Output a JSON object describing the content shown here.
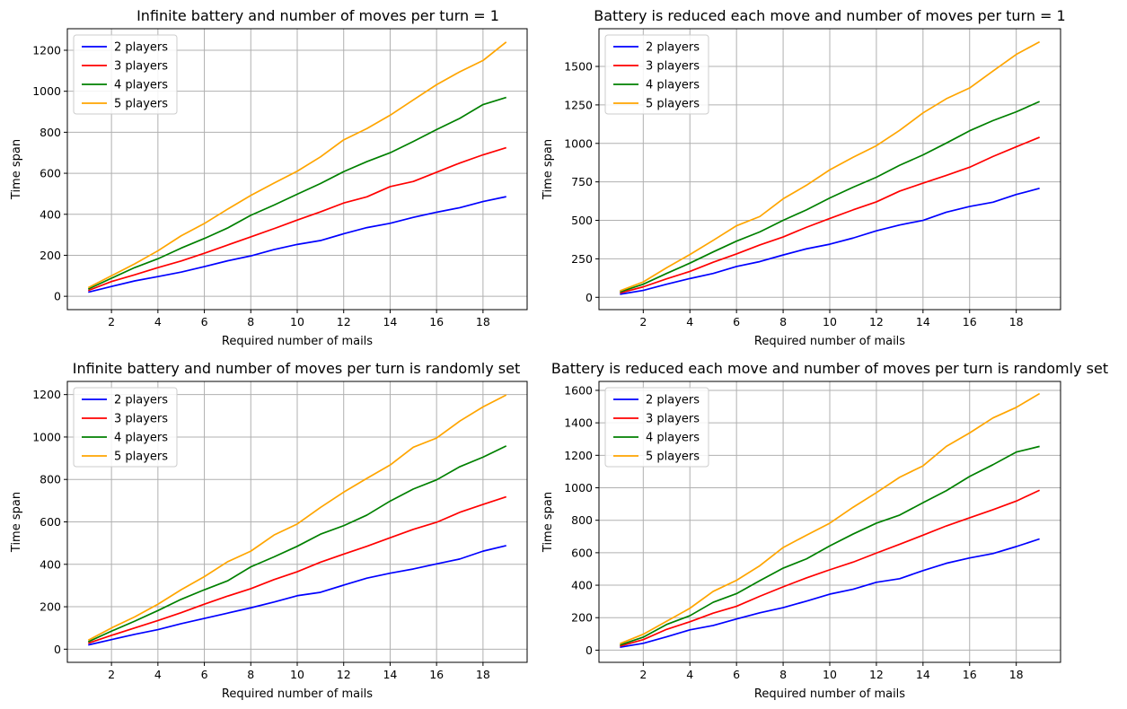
{
  "chart_data": [
    {
      "type": "line",
      "title": "Infinite battery and number of moves per turn = 1",
      "xlabel": "Required number of mails",
      "ylabel": "Time span",
      "xlim": [
        0.1,
        19.9
      ],
      "ylim": [
        -65,
        1305
      ],
      "xticks": [
        2,
        4,
        6,
        8,
        10,
        12,
        14,
        16,
        18
      ],
      "yticks": [
        0,
        200,
        400,
        600,
        800,
        1000,
        1200
      ],
      "grid": true,
      "legend": "upper-left",
      "x": [
        1,
        2,
        3,
        4,
        5,
        6,
        7,
        8,
        9,
        10,
        11,
        12,
        13,
        14,
        15,
        16,
        17,
        18,
        19
      ],
      "series": [
        {
          "name": "2 players",
          "color": "#0000ff",
          "values": [
            20,
            48,
            75,
            96,
            118,
            145,
            173,
            197,
            228,
            253,
            272,
            305,
            335,
            356,
            385,
            410,
            432,
            462,
            486
          ]
        },
        {
          "name": "3 players",
          "color": "#ff0000",
          "values": [
            28,
            72,
            105,
            140,
            172,
            210,
            250,
            290,
            330,
            372,
            412,
            455,
            485,
            535,
            560,
            605,
            650,
            690,
            725
          ]
        },
        {
          "name": "4 players",
          "color": "#008000",
          "values": [
            35,
            88,
            140,
            183,
            235,
            282,
            333,
            395,
            445,
            498,
            550,
            608,
            657,
            700,
            755,
            813,
            868,
            935,
            970
          ]
        },
        {
          "name": "5 players",
          "color": "#ffa500",
          "values": [
            42,
            100,
            158,
            222,
            295,
            355,
            425,
            492,
            552,
            610,
            680,
            763,
            818,
            883,
            958,
            1032,
            1095,
            1150,
            1240
          ]
        }
      ]
    },
    {
      "type": "line",
      "title": "Battery is reduced each move and number of moves per turn = 1",
      "xlabel": "Required number of mails",
      "ylabel": "Time span",
      "xlim": [
        0.1,
        19.9
      ],
      "ylim": [
        -80,
        1745
      ],
      "xticks": [
        2,
        4,
        6,
        8,
        10,
        12,
        14,
        16,
        18
      ],
      "yticks": [
        0,
        250,
        500,
        750,
        1000,
        1250,
        1500
      ],
      "grid": true,
      "legend": "upper-left",
      "x": [
        1,
        2,
        3,
        4,
        5,
        6,
        7,
        8,
        9,
        10,
        11,
        12,
        13,
        14,
        15,
        16,
        17,
        18,
        19
      ],
      "series": [
        {
          "name": "2 players",
          "color": "#0000ff",
          "values": [
            20,
            45,
            85,
            122,
            155,
            200,
            232,
            275,
            315,
            345,
            385,
            432,
            470,
            500,
            553,
            590,
            618,
            668,
            708
          ]
        },
        {
          "name": "3 players",
          "color": "#ff0000",
          "values": [
            28,
            68,
            120,
            168,
            228,
            282,
            340,
            392,
            455,
            512,
            568,
            620,
            690,
            742,
            792,
            845,
            915,
            978,
            1040
          ]
        },
        {
          "name": "4 players",
          "color": "#008000",
          "values": [
            35,
            85,
            155,
            222,
            295,
            365,
            425,
            500,
            568,
            645,
            715,
            780,
            858,
            925,
            1002,
            1082,
            1148,
            1205,
            1272
          ]
        },
        {
          "name": "5 players",
          "color": "#ffa500",
          "values": [
            42,
            100,
            192,
            278,
            370,
            465,
            525,
            640,
            728,
            828,
            910,
            985,
            1085,
            1198,
            1290,
            1360,
            1470,
            1578,
            1660
          ]
        }
      ]
    },
    {
      "type": "line",
      "title": "Infinite battery and number of moves per turn is randomly set",
      "xlabel": "Required number of mails",
      "ylabel": "Time span",
      "xlim": [
        0.1,
        19.9
      ],
      "ylim": [
        -62,
        1262
      ],
      "xticks": [
        2,
        4,
        6,
        8,
        10,
        12,
        14,
        16,
        18
      ],
      "yticks": [
        0,
        200,
        400,
        600,
        800,
        1000,
        1200
      ],
      "grid": true,
      "legend": "upper-left",
      "x": [
        1,
        2,
        3,
        4,
        5,
        6,
        7,
        8,
        9,
        10,
        11,
        12,
        13,
        14,
        15,
        16,
        17,
        18,
        19
      ],
      "series": [
        {
          "name": "2 players",
          "color": "#0000ff",
          "values": [
            20,
            45,
            70,
            92,
            120,
            145,
            170,
            195,
            222,
            252,
            268,
            302,
            335,
            358,
            378,
            402,
            425,
            462,
            488
          ]
        },
        {
          "name": "3 players",
          "color": "#ff0000",
          "values": [
            28,
            65,
            100,
            135,
            172,
            212,
            250,
            285,
            328,
            365,
            410,
            448,
            485,
            525,
            565,
            598,
            645,
            682,
            718
          ]
        },
        {
          "name": "4 players",
          "color": "#008000",
          "values": [
            35,
            85,
            132,
            182,
            235,
            280,
            322,
            388,
            435,
            485,
            542,
            582,
            632,
            698,
            755,
            798,
            860,
            905,
            958
          ]
        },
        {
          "name": "5 players",
          "color": "#ffa500",
          "values": [
            42,
            100,
            152,
            212,
            280,
            342,
            412,
            462,
            538,
            590,
            668,
            740,
            805,
            868,
            952,
            995,
            1075,
            1142,
            1198
          ]
        }
      ]
    },
    {
      "type": "line",
      "title": "Battery is reduced each move and number of moves per turn is randomly set",
      "xlabel": "Required number of mails",
      "ylabel": "Time span",
      "xlim": [
        0.1,
        19.9
      ],
      "ylim": [
        -75,
        1655
      ],
      "xticks": [
        2,
        4,
        6,
        8,
        10,
        12,
        14,
        16,
        18
      ],
      "yticks": [
        0,
        200,
        400,
        600,
        800,
        1000,
        1200,
        1400,
        1600
      ],
      "grid": true,
      "legend": "upper-left",
      "x": [
        1,
        2,
        3,
        4,
        5,
        6,
        7,
        8,
        9,
        10,
        11,
        12,
        13,
        14,
        15,
        16,
        17,
        18,
        19
      ],
      "series": [
        {
          "name": "2 players",
          "color": "#0000ff",
          "values": [
            18,
            42,
            82,
            125,
            152,
            192,
            230,
            262,
            302,
            345,
            375,
            418,
            440,
            490,
            535,
            568,
            595,
            638,
            685
          ]
        },
        {
          "name": "3 players",
          "color": "#ff0000",
          "values": [
            25,
            65,
            128,
            175,
            228,
            270,
            332,
            390,
            445,
            495,
            542,
            598,
            652,
            708,
            765,
            815,
            865,
            918,
            985
          ]
        },
        {
          "name": "4 players",
          "color": "#008000",
          "values": [
            32,
            80,
            158,
            212,
            295,
            348,
            428,
            505,
            562,
            642,
            715,
            782,
            832,
            908,
            982,
            1070,
            1142,
            1220,
            1255
          ]
        },
        {
          "name": "5 players",
          "color": "#ffa500",
          "values": [
            40,
            98,
            178,
            258,
            362,
            430,
            520,
            632,
            708,
            782,
            880,
            970,
            1065,
            1135,
            1255,
            1338,
            1430,
            1495,
            1580
          ]
        }
      ]
    }
  ]
}
